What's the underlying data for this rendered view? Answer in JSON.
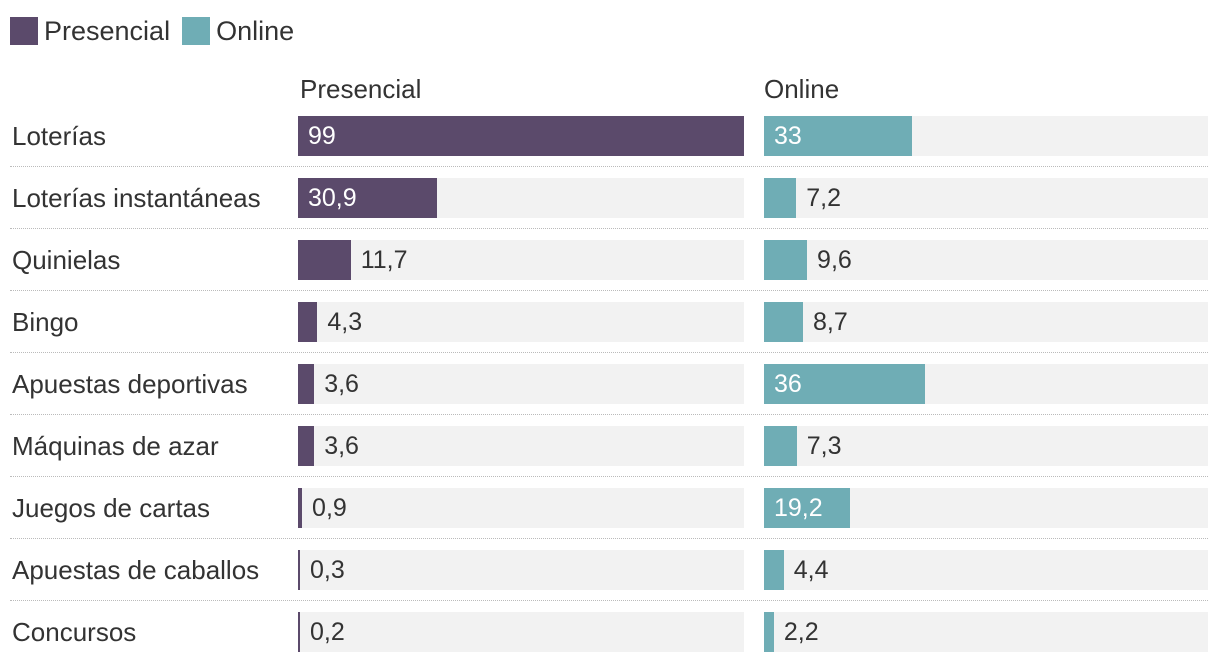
{
  "chart_data": {
    "type": "bar",
    "orientation": "horizontal",
    "layout": "small-multiples",
    "categories": [
      "Loterías",
      "Loterías instantáneas",
      "Quinielas",
      "Bingo",
      "Apuestas deportivas",
      "Máquinas de azar",
      "Juegos de cartas",
      "Apuestas de caballos",
      "Concursos"
    ],
    "series": [
      {
        "name": "Presencial",
        "values": [
          99,
          30.9,
          11.7,
          4.3,
          3.6,
          3.6,
          0.9,
          0.3,
          0.2
        ],
        "labels": [
          "99",
          "30,9",
          "11,7",
          "4,3",
          "3,6",
          "3,6",
          "0,9",
          "0,3",
          "0,2"
        ],
        "color": "#5b4a6b"
      },
      {
        "name": "Online",
        "values": [
          33,
          7.2,
          9.6,
          8.7,
          36,
          7.3,
          19.2,
          4.4,
          2.2
        ],
        "labels": [
          "33",
          "7,2",
          "9,6",
          "8,7",
          "36",
          "7,3",
          "19,2",
          "4,4",
          "2,2"
        ],
        "color": "#6fadb5"
      }
    ],
    "xlim": [
      0,
      99
    ],
    "legend": "top-left",
    "grid": false
  },
  "legend": [
    "Presencial",
    "Online"
  ],
  "column_headers": [
    "Presencial",
    "Online"
  ]
}
